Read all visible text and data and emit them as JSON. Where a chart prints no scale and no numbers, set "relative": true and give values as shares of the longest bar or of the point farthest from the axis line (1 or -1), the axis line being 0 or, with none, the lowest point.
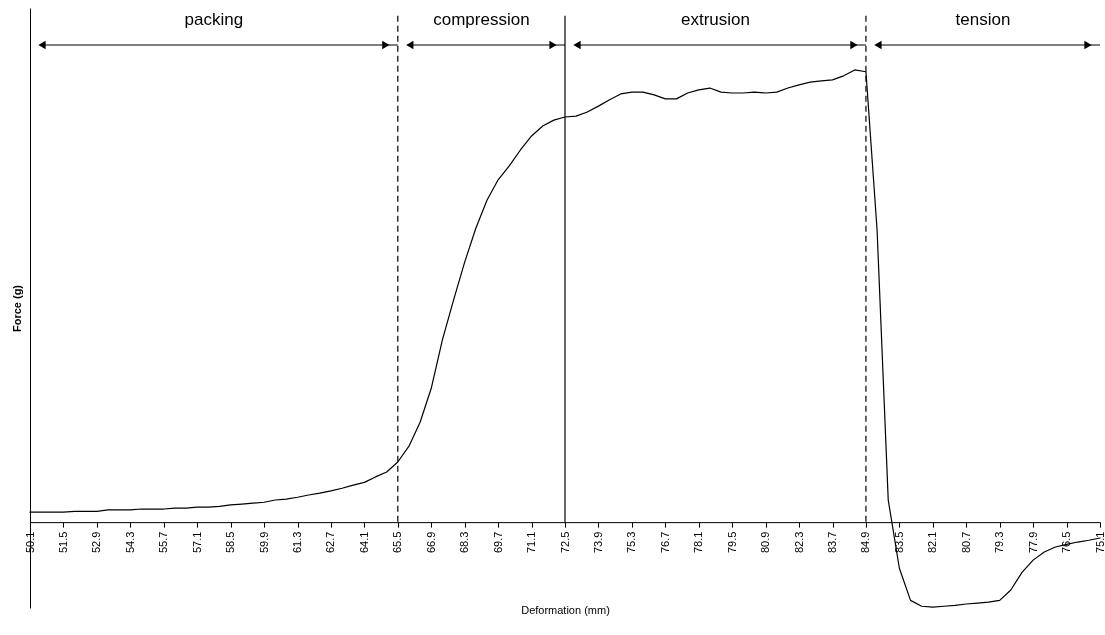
{
  "chart_data": {
    "type": "line",
    "relative": true,
    "xlabel": "Deformation (mm)",
    "ylabel": "Force (g)",
    "categories": [
      "50.1",
      null,
      null,
      "51.5",
      null,
      null,
      "52.9",
      null,
      null,
      "54.3",
      null,
      null,
      "55.7",
      null,
      null,
      "57.1",
      null,
      null,
      "58.5",
      null,
      null,
      "59.9",
      null,
      null,
      "61.3",
      null,
      null,
      "62.7",
      null,
      null,
      "64.1",
      null,
      null,
      "65.5",
      null,
      null,
      "66.9",
      null,
      null,
      "68.3",
      null,
      null,
      "69.7",
      null,
      null,
      "71.1",
      null,
      null,
      "72.5",
      null,
      null,
      "73.9",
      null,
      null,
      "75.3",
      null,
      null,
      "76.7",
      null,
      null,
      "78.1",
      null,
      null,
      "79.5",
      null,
      null,
      "80.9",
      null,
      null,
      "82.3",
      null,
      null,
      "83.7",
      null,
      null,
      "84.9",
      null,
      null,
      "83.5",
      null,
      null,
      "82.1",
      null,
      null,
      "80.7",
      null,
      null,
      "79.3",
      null,
      null,
      "77.9",
      null,
      null,
      "76.5",
      null,
      null,
      "75.1"
    ],
    "series": [
      {
        "color": "#000000",
        "values": [
          0.022,
          0.022,
          0.022,
          0.022,
          0.024,
          0.024,
          0.024,
          0.027,
          0.027,
          0.027,
          0.029,
          0.029,
          0.029,
          0.031,
          0.031,
          0.033,
          0.033,
          0.035,
          0.038,
          0.04,
          0.042,
          0.044,
          0.049,
          0.051,
          0.055,
          0.06,
          0.064,
          0.069,
          0.075,
          0.082,
          0.088,
          0.1,
          0.111,
          0.133,
          0.168,
          0.221,
          0.296,
          0.403,
          0.491,
          0.575,
          0.65,
          0.712,
          0.757,
          0.788,
          0.823,
          0.854,
          0.876,
          0.889,
          0.896,
          0.898,
          0.907,
          0.92,
          0.934,
          0.947,
          0.951,
          0.951,
          0.945,
          0.936,
          0.936,
          0.949,
          0.956,
          0.96,
          0.951,
          0.949,
          0.949,
          0.951,
          0.949,
          0.951,
          0.96,
          0.967,
          0.973,
          0.976,
          0.978,
          0.987,
          1.0,
          0.996,
          0.646,
          0.049,
          -0.102,
          -0.173,
          -0.186,
          -0.188,
          -0.186,
          -0.184,
          -0.181,
          -0.179,
          -0.177,
          -0.173,
          -0.15,
          -0.111,
          -0.084,
          -0.066,
          -0.055,
          -0.049,
          -0.044,
          -0.04,
          -0.035
        ]
      }
    ],
    "ref_lines": [
      {
        "axis": "x",
        "value": "65.5",
        "line_style": "dashed"
      },
      {
        "axis": "x",
        "value": "72.5",
        "line_style": "solid"
      },
      {
        "axis": "x",
        "value": "84.9",
        "line_style": "dashed"
      }
    ],
    "annotations": [
      "packing",
      "compression",
      "extrusion",
      "tension"
    ],
    "grid": false
  }
}
